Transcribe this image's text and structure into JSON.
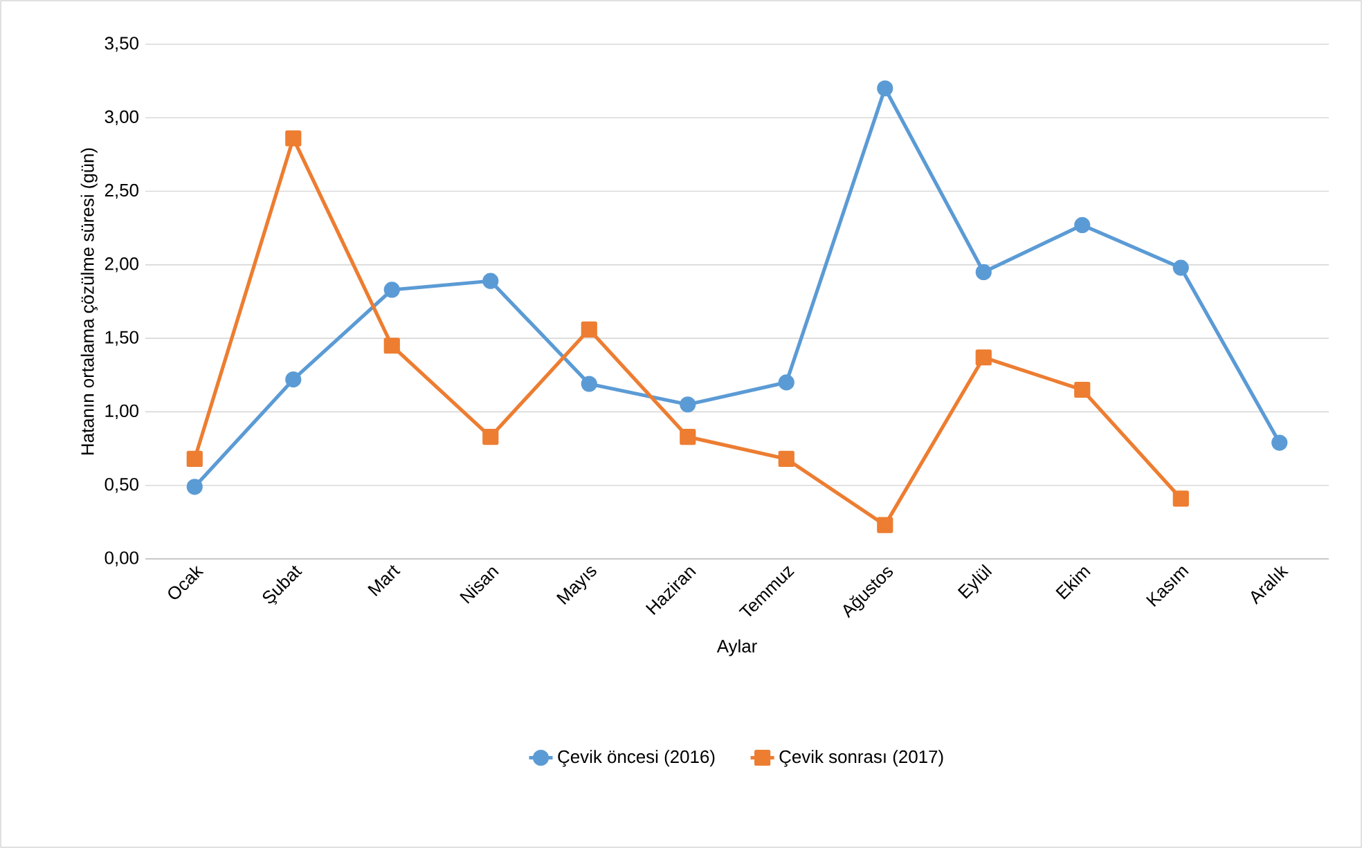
{
  "chart_data": {
    "type": "line",
    "xlabel": "Aylar",
    "ylabel": "Hatanın ortalama çözülme süresi (gün)",
    "categories": [
      "Ocak",
      "Şubat",
      "Mart",
      "Nisan",
      "Mayıs",
      "Haziran",
      "Temmuz",
      "Ağustos",
      "Eylül",
      "Ekim",
      "Kasım",
      "Aralık"
    ],
    "series": [
      {
        "name": "Çevik öncesi (2016)",
        "color": "#5b9bd5",
        "marker": "circle",
        "values": [
          0.49,
          1.22,
          1.83,
          1.89,
          1.19,
          1.05,
          1.2,
          3.2,
          1.95,
          2.27,
          1.98,
          0.79
        ]
      },
      {
        "name": "Çevik sonrası (2017)",
        "color": "#ed7d31",
        "marker": "square",
        "values": [
          0.68,
          2.86,
          1.45,
          0.83,
          1.56,
          0.83,
          0.68,
          0.23,
          1.37,
          1.15,
          0.41,
          null
        ]
      }
    ],
    "ylim": [
      0,
      3.5
    ],
    "yticks": [
      {
        "value": 0,
        "label": "0,00"
      },
      {
        "value": 0.5,
        "label": "0,50"
      },
      {
        "value": 1,
        "label": "1,00"
      },
      {
        "value": 1.5,
        "label": "1,50"
      },
      {
        "value": 2,
        "label": "2,00"
      },
      {
        "value": 2.5,
        "label": "2,50"
      },
      {
        "value": 3,
        "label": "3,00"
      },
      {
        "value": 3.5,
        "label": "3,50"
      }
    ],
    "grid": "y",
    "legend": "bottom",
    "line_style": "solid"
  }
}
